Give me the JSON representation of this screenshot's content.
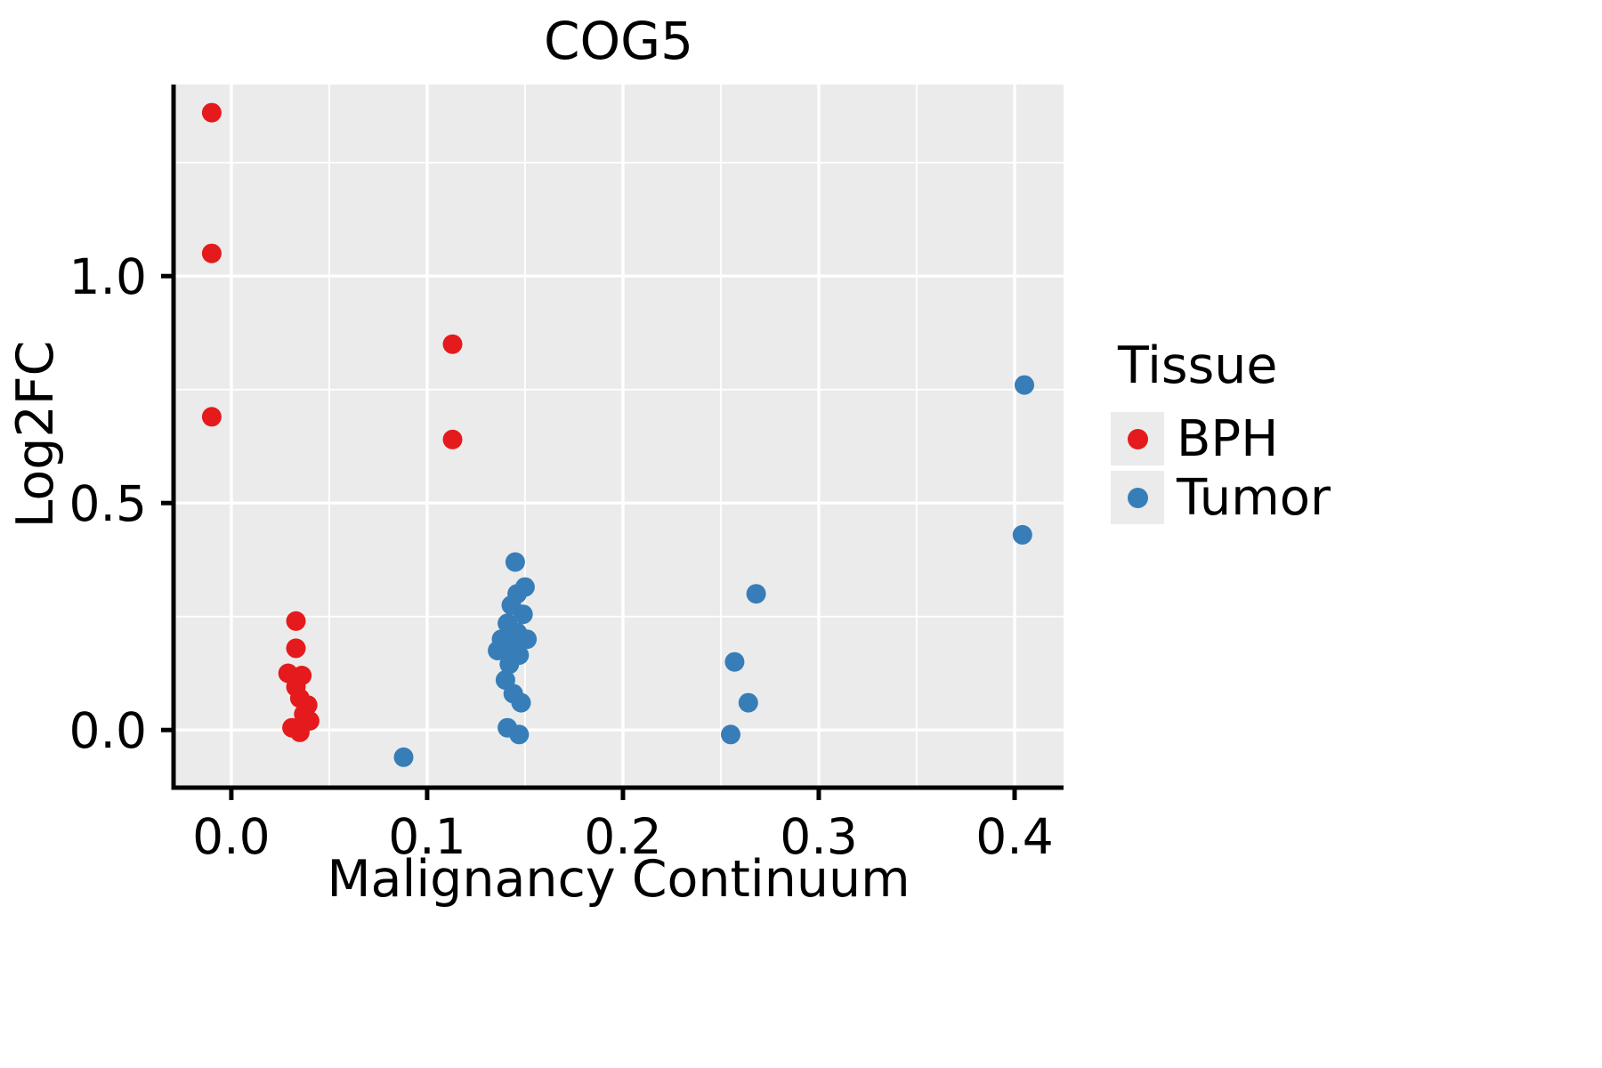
{
  "chart_data": {
    "type": "scatter",
    "title": "COG5",
    "xlabel": "Malignancy Continuum",
    "ylabel": "Log2FC",
    "xlim": [
      -0.0295,
      0.425
    ],
    "ylim": [
      -0.127,
      1.422
    ],
    "xticks": [
      0.0,
      0.1,
      0.2,
      0.3,
      0.4
    ],
    "xtick_labels": [
      "0.0",
      "0.1",
      "0.2",
      "0.3",
      "0.4"
    ],
    "yticks": [
      0.0,
      0.5,
      1.0
    ],
    "ytick_labels": [
      "0.0",
      "0.5",
      "1.0"
    ],
    "xticks_minor": [
      0.05,
      0.15,
      0.25,
      0.35
    ],
    "yticks_minor": [
      0.25,
      0.75,
      1.25
    ],
    "grid": true,
    "panel_bg": "#EBEBEB",
    "grid_color": "#FFFFFF",
    "axis_color": "#000000",
    "legend": {
      "title": "Tissue",
      "position": "right"
    },
    "series": [
      {
        "name": "BPH",
        "color": "#E41A1C",
        "points": [
          [
            -0.01,
            1.36
          ],
          [
            -0.01,
            1.05
          ],
          [
            -0.01,
            0.69
          ],
          [
            0.113,
            0.85
          ],
          [
            0.113,
            0.64
          ],
          [
            0.033,
            0.24
          ],
          [
            0.033,
            0.18
          ],
          [
            0.029,
            0.125
          ],
          [
            0.036,
            0.12
          ],
          [
            0.033,
            0.095
          ],
          [
            0.035,
            0.07
          ],
          [
            0.039,
            0.055
          ],
          [
            0.037,
            0.035
          ],
          [
            0.04,
            0.02
          ],
          [
            0.031,
            0.005
          ],
          [
            0.035,
            -0.005
          ]
        ]
      },
      {
        "name": "Tumor",
        "color": "#377EB8",
        "points": [
          [
            0.088,
            -0.06
          ],
          [
            0.145,
            0.37
          ],
          [
            0.15,
            0.315
          ],
          [
            0.146,
            0.3
          ],
          [
            0.143,
            0.275
          ],
          [
            0.149,
            0.255
          ],
          [
            0.141,
            0.235
          ],
          [
            0.146,
            0.215
          ],
          [
            0.138,
            0.2
          ],
          [
            0.151,
            0.2
          ],
          [
            0.143,
            0.185
          ],
          [
            0.136,
            0.175
          ],
          [
            0.147,
            0.165
          ],
          [
            0.142,
            0.145
          ],
          [
            0.14,
            0.11
          ],
          [
            0.144,
            0.08
          ],
          [
            0.148,
            0.06
          ],
          [
            0.141,
            0.005
          ],
          [
            0.147,
            -0.01
          ],
          [
            0.268,
            0.3
          ],
          [
            0.257,
            0.15
          ],
          [
            0.264,
            0.06
          ],
          [
            0.255,
            -0.01
          ],
          [
            0.405,
            0.76
          ],
          [
            0.404,
            0.43
          ]
        ]
      }
    ]
  }
}
